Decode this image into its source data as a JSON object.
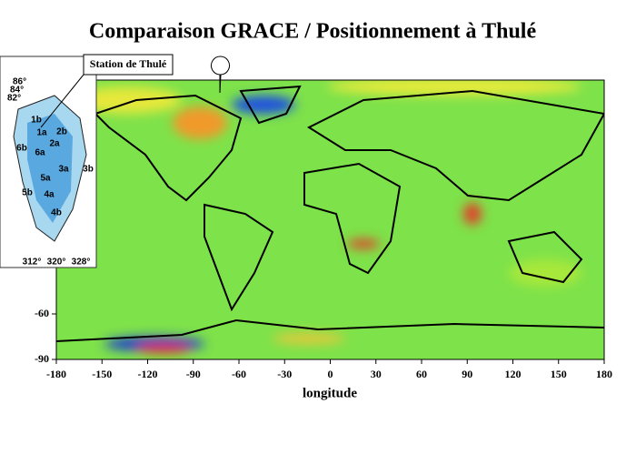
{
  "title": "Comparaison GRACE / Positionnement à Thulé",
  "callout": "Station de Thulé",
  "map": {
    "xlabel": "longitude",
    "xlim": [
      -180,
      180
    ],
    "ylim": [
      -90,
      90
    ],
    "xticks": [
      -180,
      -150,
      -120,
      -90,
      -60,
      -30,
      0,
      30,
      60,
      90,
      120,
      150,
      180
    ],
    "yticks": [
      -60,
      -90
    ]
  },
  "inset": {
    "regions": [
      "1b",
      "1a",
      "2b",
      "2a",
      "6b",
      "6a",
      "3a",
      "3b",
      "5a",
      "5b",
      "4a",
      "4b"
    ],
    "latitudes": [
      "86°",
      "84°",
      "82°"
    ],
    "longitudes": [
      "312°",
      "320°",
      "328°"
    ]
  }
}
